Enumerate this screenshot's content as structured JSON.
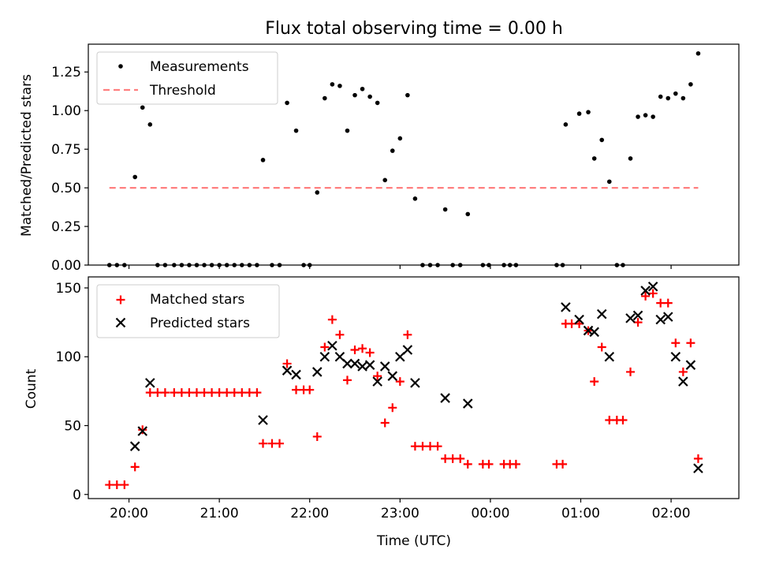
{
  "chart_data": [
    {
      "type": "scatter",
      "title": "Flux total observing time = 0.00 h",
      "ylabel": "Matched/Predicted stars",
      "xlabel": "",
      "ylim": [
        0,
        1.43
      ],
      "yticks": [
        0,
        0.25,
        0.5,
        0.75,
        1.0,
        1.25
      ],
      "ytick_labels": [
        "0.00",
        "0.25",
        "0.50",
        "0.75",
        "1.00",
        "1.25"
      ],
      "legend_position": "top-left",
      "series": [
        {
          "name": "Measurements",
          "marker": "dot",
          "color": "#000000",
          "points": [
            [
              "19:47",
              0.0
            ],
            [
              "19:52",
              0.0
            ],
            [
              "19:57",
              0.0
            ],
            [
              "20:04",
              0.57
            ],
            [
              "20:09",
              1.02
            ],
            [
              "20:14",
              0.91
            ],
            [
              "20:19",
              0.0
            ],
            [
              "20:24",
              0.0
            ],
            [
              "20:30",
              0.0
            ],
            [
              "20:35",
              0.0
            ],
            [
              "20:40",
              0.0
            ],
            [
              "20:45",
              0.0
            ],
            [
              "20:50",
              0.0
            ],
            [
              "20:55",
              0.0
            ],
            [
              "21:00",
              0.0
            ],
            [
              "21:05",
              0.0
            ],
            [
              "21:10",
              0.0
            ],
            [
              "21:15",
              0.0
            ],
            [
              "21:20",
              0.0
            ],
            [
              "21:25",
              0.0
            ],
            [
              "21:29",
              0.68
            ],
            [
              "21:35",
              0.0
            ],
            [
              "21:40",
              0.0
            ],
            [
              "21:45",
              1.05
            ],
            [
              "21:51",
              0.87
            ],
            [
              "21:56",
              0.0
            ],
            [
              "22:00",
              0.0
            ],
            [
              "22:05",
              0.47
            ],
            [
              "22:10",
              1.08
            ],
            [
              "22:15",
              1.17
            ],
            [
              "22:20",
              1.16
            ],
            [
              "22:25",
              0.87
            ],
            [
              "22:30",
              1.1
            ],
            [
              "22:35",
              1.14
            ],
            [
              "22:40",
              1.09
            ],
            [
              "22:45",
              1.05
            ],
            [
              "22:50",
              0.55
            ],
            [
              "22:55",
              0.74
            ],
            [
              "23:00",
              0.82
            ],
            [
              "23:05",
              1.1
            ],
            [
              "23:10",
              0.43
            ],
            [
              "23:15",
              0.0
            ],
            [
              "23:20",
              0.0
            ],
            [
              "23:25",
              0.0
            ],
            [
              "23:30",
              0.36
            ],
            [
              "23:35",
              0.0
            ],
            [
              "23:40",
              0.0
            ],
            [
              "23:45",
              0.33
            ],
            [
              "23:55",
              0.0
            ],
            [
              "23:59",
              0.0
            ],
            [
              "00:09",
              0.0
            ],
            [
              "00:13",
              0.0
            ],
            [
              "00:17",
              0.0
            ],
            [
              "00:44",
              0.0
            ],
            [
              "00:48",
              0.0
            ],
            [
              "00:50",
              0.91
            ],
            [
              "00:59",
              0.98
            ],
            [
              "01:05",
              0.99
            ],
            [
              "01:09",
              0.69
            ],
            [
              "01:14",
              0.81
            ],
            [
              "01:19",
              0.54
            ],
            [
              "01:24",
              0.0
            ],
            [
              "01:28",
              0.0
            ],
            [
              "01:33",
              0.69
            ],
            [
              "01:38",
              0.96
            ],
            [
              "01:43",
              0.97
            ],
            [
              "01:48",
              0.96
            ],
            [
              "01:53",
              1.09
            ],
            [
              "01:58",
              1.08
            ],
            [
              "02:03",
              1.11
            ],
            [
              "02:08",
              1.08
            ],
            [
              "02:13",
              1.17
            ],
            [
              "02:18",
              1.37
            ]
          ]
        },
        {
          "name": "Threshold",
          "marker": "dashed-line",
          "color": "#ff7f7f",
          "points": [
            [
              "19:47",
              0.5
            ],
            [
              "02:18",
              0.5
            ]
          ]
        }
      ]
    },
    {
      "type": "scatter",
      "title": "",
      "xlabel": "Time (UTC)",
      "ylabel": "Count",
      "ylim": [
        0,
        150
      ],
      "yticks": [
        0,
        50,
        100,
        150
      ],
      "xticks": [
        "20:00",
        "21:00",
        "22:00",
        "23:00",
        "00:00",
        "01:00",
        "02:00"
      ],
      "legend_position": "top-left",
      "series": [
        {
          "name": "Matched stars",
          "marker": "plus",
          "color": "#ff0000",
          "points": [
            [
              "19:47",
              7
            ],
            [
              "19:52",
              7
            ],
            [
              "19:57",
              7
            ],
            [
              "20:04",
              20
            ],
            [
              "20:09",
              47
            ],
            [
              "20:14",
              74
            ],
            [
              "20:19",
              74
            ],
            [
              "20:24",
              74
            ],
            [
              "20:30",
              74
            ],
            [
              "20:35",
              74
            ],
            [
              "20:40",
              74
            ],
            [
              "20:45",
              74
            ],
            [
              "20:50",
              74
            ],
            [
              "20:55",
              74
            ],
            [
              "21:00",
              74
            ],
            [
              "21:05",
              74
            ],
            [
              "21:10",
              74
            ],
            [
              "21:15",
              74
            ],
            [
              "21:20",
              74
            ],
            [
              "21:25",
              74
            ],
            [
              "21:29",
              37
            ],
            [
              "21:35",
              37
            ],
            [
              "21:40",
              37
            ],
            [
              "21:45",
              95
            ],
            [
              "21:51",
              76
            ],
            [
              "21:56",
              76
            ],
            [
              "22:00",
              76
            ],
            [
              "22:05",
              42
            ],
            [
              "22:10",
              107
            ],
            [
              "22:15",
              127
            ],
            [
              "22:20",
              116
            ],
            [
              "22:25",
              83
            ],
            [
              "22:30",
              105
            ],
            [
              "22:35",
              106
            ],
            [
              "22:40",
              103
            ],
            [
              "22:45",
              86
            ],
            [
              "22:50",
              52
            ],
            [
              "22:55",
              63
            ],
            [
              "23:00",
              82
            ],
            [
              "23:05",
              116
            ],
            [
              "23:10",
              35
            ],
            [
              "23:15",
              35
            ],
            [
              "23:20",
              35
            ],
            [
              "23:25",
              35
            ],
            [
              "23:30",
              26
            ],
            [
              "23:35",
              26
            ],
            [
              "23:40",
              26
            ],
            [
              "23:45",
              22
            ],
            [
              "23:55",
              22
            ],
            [
              "23:59",
              22
            ],
            [
              "00:09",
              22
            ],
            [
              "00:13",
              22
            ],
            [
              "00:17",
              22
            ],
            [
              "00:44",
              22
            ],
            [
              "00:48",
              22
            ],
            [
              "00:50",
              124
            ],
            [
              "00:54",
              124
            ],
            [
              "00:59",
              124
            ],
            [
              "01:05",
              119
            ],
            [
              "01:09",
              82
            ],
            [
              "01:14",
              107
            ],
            [
              "01:19",
              54
            ],
            [
              "01:24",
              54
            ],
            [
              "01:28",
              54
            ],
            [
              "01:33",
              89
            ],
            [
              "01:38",
              125
            ],
            [
              "01:43",
              144
            ],
            [
              "01:48",
              146
            ],
            [
              "01:53",
              139
            ],
            [
              "01:58",
              139
            ],
            [
              "02:03",
              110
            ],
            [
              "02:08",
              89
            ],
            [
              "02:13",
              110
            ],
            [
              "02:18",
              26
            ]
          ]
        },
        {
          "name": "Predicted stars",
          "marker": "x",
          "color": "#000000",
          "points": [
            [
              "20:04",
              35
            ],
            [
              "20:09",
              46
            ],
            [
              "20:14",
              81
            ],
            [
              "21:29",
              54
            ],
            [
              "21:45",
              90
            ],
            [
              "21:51",
              87
            ],
            [
              "22:05",
              89
            ],
            [
              "22:10",
              100
            ],
            [
              "22:15",
              108
            ],
            [
              "22:20",
              100
            ],
            [
              "22:25",
              95
            ],
            [
              "22:30",
              95
            ],
            [
              "22:35",
              93
            ],
            [
              "22:40",
              94
            ],
            [
              "22:45",
              82
            ],
            [
              "22:50",
              93
            ],
            [
              "22:55",
              86
            ],
            [
              "23:00",
              100
            ],
            [
              "23:05",
              105
            ],
            [
              "23:10",
              81
            ],
            [
              "23:30",
              70
            ],
            [
              "23:45",
              66
            ],
            [
              "00:50",
              136
            ],
            [
              "00:59",
              127
            ],
            [
              "01:05",
              119
            ],
            [
              "01:09",
              118
            ],
            [
              "01:14",
              131
            ],
            [
              "01:19",
              100
            ],
            [
              "01:33",
              128
            ],
            [
              "01:38",
              130
            ],
            [
              "01:43",
              148
            ],
            [
              "01:48",
              151
            ],
            [
              "01:53",
              127
            ],
            [
              "01:58",
              129
            ],
            [
              "02:03",
              100
            ],
            [
              "02:08",
              82
            ],
            [
              "02:13",
              94
            ],
            [
              "02:18",
              19
            ]
          ]
        }
      ]
    }
  ]
}
